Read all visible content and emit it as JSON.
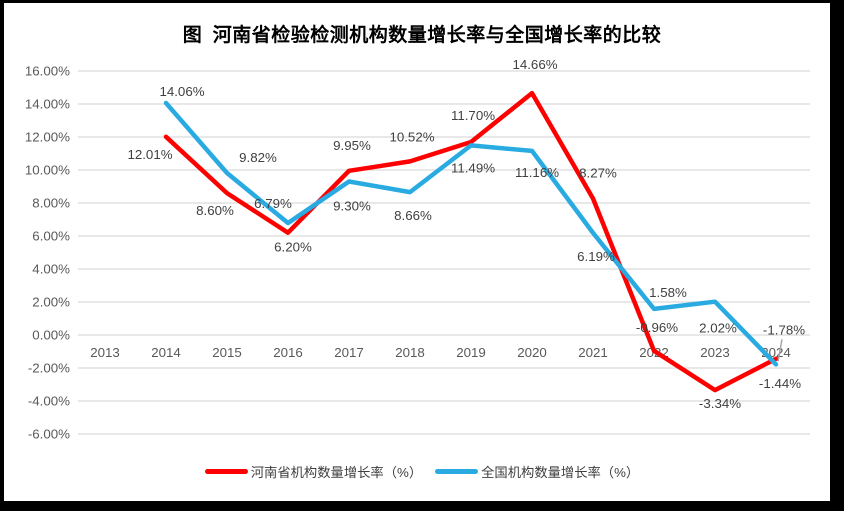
{
  "title": "图  河南省检验检测机构数量增长率与全国增长率的比较",
  "colors": {
    "henan_series": "#FF0000",
    "national_series": "#29ABE2",
    "grid": "#D9D9D9",
    "axis_text": "#595959",
    "data_label_text": "#404040",
    "frame": "#000000",
    "leader_line": "#A6A6A6",
    "background": "#FFFFFF"
  },
  "chart_data": {
    "type": "line",
    "title": "图  河南省检验检测机构数量增长率与全国增长率的比较",
    "categories": [
      "2013",
      "2014",
      "2015",
      "2016",
      "2017",
      "2018",
      "2019",
      "2020",
      "2021",
      "2022",
      "2023",
      "2024"
    ],
    "y_axis": {
      "min": -6,
      "max": 16,
      "step": 2,
      "tick_values": [
        16,
        14,
        12,
        10,
        8,
        6,
        4,
        2,
        0,
        -2,
        -4,
        -6
      ],
      "tick_labels": [
        "16.00%",
        "14.00%",
        "12.00%",
        "10.00%",
        "8.00%",
        "6.00%",
        "4.00%",
        "2.00%",
        "0.00%",
        "-2.00%",
        "-4.00%",
        "-6.00%"
      ]
    },
    "grid": true,
    "legend_position": "bottom",
    "series": [
      {
        "id": "henan",
        "name": "河南省机构数量增长率（%）",
        "color": "#FF0000",
        "values": [
          null,
          12.01,
          8.6,
          6.2,
          9.95,
          10.52,
          11.7,
          14.66,
          8.27,
          -0.96,
          -3.34,
          -1.44
        ],
        "labels": [
          "",
          "12.01%",
          "8.60%",
          "6.20%",
          "9.95%",
          "10.52%",
          "11.70%",
          "14.66%",
          "8.27%",
          "-0.96%",
          "-3.34%",
          "-1.44%"
        ],
        "label_offsets": [
          null,
          [
            -16,
            22
          ],
          [
            -12,
            22
          ],
          [
            5,
            19
          ],
          [
            3,
            -21
          ],
          [
            2,
            -20
          ],
          [
            2,
            -22
          ],
          [
            3,
            -24
          ],
          [
            5,
            -21
          ],
          [
            3,
            -19
          ],
          [
            5,
            18
          ],
          [
            4,
            29
          ]
        ]
      },
      {
        "id": "national",
        "name": "全国机构数量增长率（%）",
        "color": "#29ABE2",
        "values": [
          null,
          14.06,
          9.82,
          6.79,
          9.3,
          8.66,
          11.49,
          11.16,
          6.19,
          1.58,
          2.02,
          -1.78
        ],
        "labels": [
          "",
          "14.06%",
          "9.82%",
          "6.79%",
          "9.30%",
          "8.66%",
          "11.49%",
          "11.16%",
          "6.19%",
          "1.58%",
          "2.02%",
          "-1.78%"
        ],
        "label_offsets": [
          null,
          [
            16,
            -7
          ],
          [
            31,
            -11
          ],
          [
            -15,
            -15
          ],
          [
            3,
            29
          ],
          [
            3,
            28
          ],
          [
            2,
            27
          ],
          [
            5,
            26
          ],
          [
            3,
            28
          ],
          [
            14,
            -12
          ],
          [
            3,
            31
          ],
          [
            8,
            -30
          ]
        ]
      }
    ],
    "leader_line": {
      "series_index": 1,
      "point_index": 11
    }
  }
}
